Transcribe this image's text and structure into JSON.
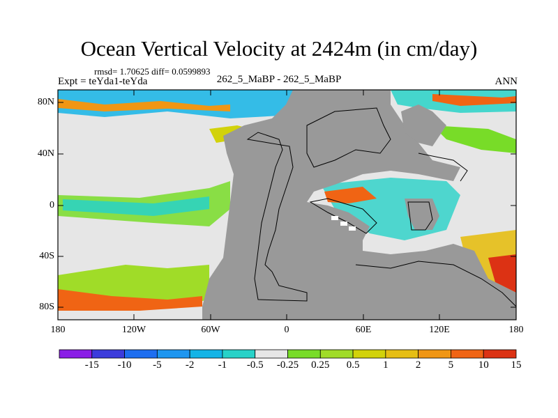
{
  "title": "Ocean Vertical Velocity at 2424m (in cm/day)",
  "stats": "rmsd= 1.70625 diff= 0.0599893",
  "experiment": "Expt = teYda1-teYda",
  "case_label": "262_5_MaBP - 262_5_MaBP",
  "season": "ANN",
  "y_ticks": [
    "80N",
    "40N",
    "0",
    "40S",
    "80S"
  ],
  "x_ticks": [
    "180",
    "120W",
    "60W",
    "0",
    "60E",
    "120E",
    "180"
  ],
  "colorbar": {
    "labels": [
      "-15",
      "-10",
      "-5",
      "-2",
      "-1",
      "-0.5",
      "-0.25",
      "0.25",
      "0.5",
      "1",
      "2",
      "5",
      "10",
      "15"
    ],
    "colors": [
      "#8a1ee6",
      "#3c3cdc",
      "#1e6ef0",
      "#1e96f0",
      "#14b4e6",
      "#28d2c8",
      "#e6e6e6",
      "#78dc28",
      "#a0dc28",
      "#d2d20a",
      "#e6be14",
      "#f09614",
      "#f06414",
      "#dc3214"
    ]
  },
  "map": {
    "land_color": "#999999",
    "ocean_neutral_color": "#e6e6e6"
  }
}
